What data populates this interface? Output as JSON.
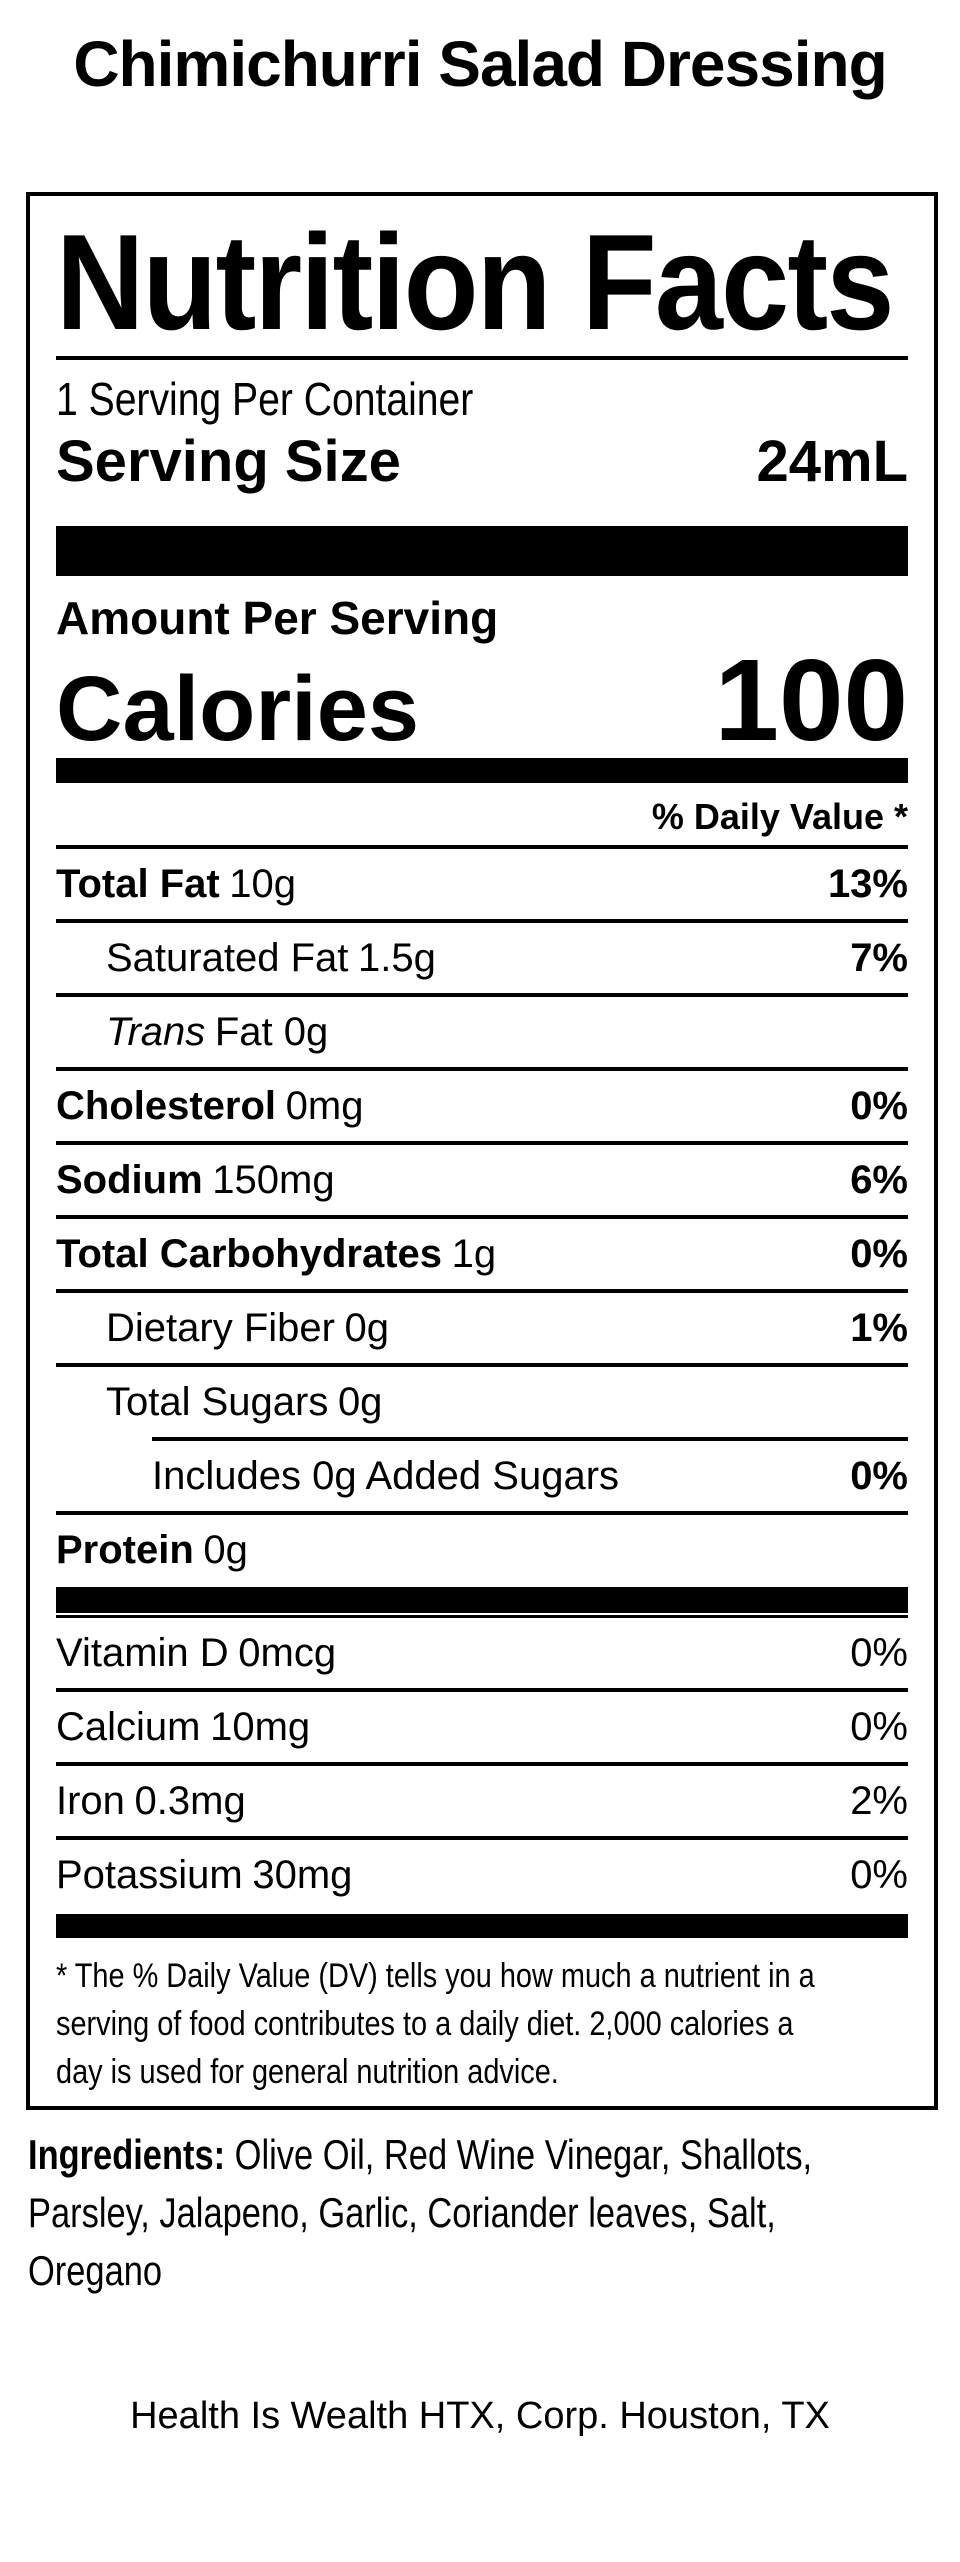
{
  "product": {
    "title": "Chimichurri Salad Dressing"
  },
  "nutrition_facts": {
    "heading": "Nutrition Facts",
    "servings_per_container": "1 Serving Per Container",
    "serving_size": {
      "label": "Serving Size",
      "value": "24mL"
    },
    "amount_per_serving": "Amount Per Serving",
    "calories": {
      "label": "Calories",
      "value": "100"
    },
    "daily_value_header": "% Daily Value *",
    "nutrients": [
      {
        "name": "Total Fat",
        "amount": "10g",
        "dv": "13%",
        "name_bold": true,
        "name_italic": false,
        "dv_bold": true,
        "indent": 0,
        "sep": "full"
      },
      {
        "name": "Saturated Fat",
        "amount": "1.5g",
        "dv": "7%",
        "name_bold": false,
        "name_italic": false,
        "dv_bold": true,
        "indent": 1,
        "sep": "full"
      },
      {
        "name": "Trans",
        "amount": "Fat 0g",
        "dv": "",
        "name_bold": false,
        "name_italic": true,
        "dv_bold": false,
        "indent": 1,
        "sep": "full"
      },
      {
        "name": "Cholesterol",
        "amount": "0mg",
        "dv": "0%",
        "name_bold": true,
        "name_italic": false,
        "dv_bold": true,
        "indent": 0,
        "sep": "full"
      },
      {
        "name": "Sodium",
        "amount": "150mg",
        "dv": "6%",
        "name_bold": true,
        "name_italic": false,
        "dv_bold": true,
        "indent": 0,
        "sep": "full"
      },
      {
        "name": "Total Carbohydrates",
        "amount": "1g",
        "dv": "0%",
        "name_bold": true,
        "name_italic": false,
        "dv_bold": true,
        "indent": 0,
        "sep": "full"
      },
      {
        "name": "Dietary Fiber",
        "amount": "0g",
        "dv": "1%",
        "name_bold": false,
        "name_italic": false,
        "dv_bold": true,
        "indent": 1,
        "sep": "full"
      },
      {
        "name": "Total Sugars",
        "amount": "0g",
        "dv": "",
        "name_bold": false,
        "name_italic": false,
        "dv_bold": false,
        "indent": 1,
        "sep": "partial"
      },
      {
        "name": "Includes 0g Added Sugars",
        "amount": "",
        "dv": "0%",
        "name_bold": false,
        "name_italic": false,
        "dv_bold": true,
        "indent": 2,
        "sep": "full"
      },
      {
        "name": "Protein",
        "amount": "0g",
        "dv": "",
        "name_bold": true,
        "name_italic": false,
        "dv_bold": false,
        "indent": 0,
        "sep": "none"
      }
    ],
    "vitamins": [
      {
        "name": "Vitamin D",
        "amount": "0mcg",
        "dv": "0%",
        "name_bold": false,
        "name_italic": false,
        "dv_bold": false,
        "indent": 0,
        "sep": "full"
      },
      {
        "name": "Calcium",
        "amount": "10mg",
        "dv": "0%",
        "name_bold": false,
        "name_italic": false,
        "dv_bold": false,
        "indent": 0,
        "sep": "full"
      },
      {
        "name": "Iron",
        "amount": "0.3mg",
        "dv": "2%",
        "name_bold": false,
        "name_italic": false,
        "dv_bold": false,
        "indent": 0,
        "sep": "full"
      },
      {
        "name": "Potassium",
        "amount": "30mg",
        "dv": "0%",
        "name_bold": false,
        "name_italic": false,
        "dv_bold": false,
        "indent": 0,
        "sep": "none"
      }
    ],
    "footnote_lines": [
      "* The % Daily Value (DV) tells you how much a nutrient in a",
      "serving of food contributes to a daily diet. 2,000 calories a",
      "day is used for general nutrition advice."
    ]
  },
  "ingredients": {
    "label": "Ingredients:",
    "line1_rest": " Olive Oil, Red Wine Vinegar, Shallots,",
    "line2": "Parsley, Jalapeno, Garlic, Coriander leaves, Salt,",
    "line3": "Oregano"
  },
  "footer": {
    "company": "Health Is Wealth HTX, Corp. Houston, TX"
  },
  "colors": {
    "text": "#000000",
    "background": "#ffffff"
  }
}
